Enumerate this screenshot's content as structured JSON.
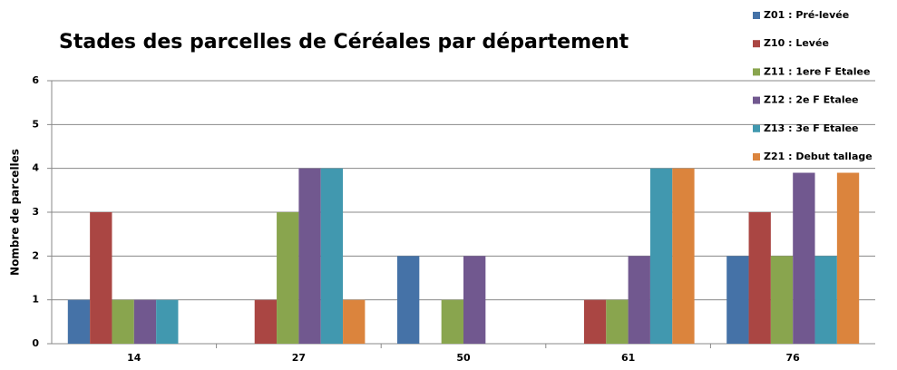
{
  "chart_data": {
    "type": "bar",
    "title": "Stades des parcelles de Céréales par département",
    "y_label": "Nombre de parcelles",
    "categories": [
      "14",
      "27",
      "50",
      "61",
      "76"
    ],
    "series": [
      {
        "name": "Z01 : Pré-levée",
        "color": "#4572a7",
        "values": [
          1,
          0,
          2,
          0,
          2
        ]
      },
      {
        "name": "Z10 : Levée",
        "color": "#aa4643",
        "values": [
          3,
          1,
          0,
          1,
          3
        ]
      },
      {
        "name": "Z11 : 1ere F Etalee",
        "color": "#89a54e",
        "values": [
          1,
          3,
          1,
          1,
          2
        ]
      },
      {
        "name": "Z12 : 2e F Etalee",
        "color": "#71588f",
        "values": [
          1,
          4,
          2,
          2,
          3.9
        ]
      },
      {
        "name": "Z13 : 3e F Etalee",
        "color": "#4198af",
        "values": [
          1,
          4,
          0,
          4,
          2
        ]
      },
      {
        "name": "Z21 : Debut tallage",
        "color": "#db843d",
        "values": [
          0,
          1,
          0,
          4,
          3.9
        ]
      }
    ],
    "ylim": [
      0,
      6
    ],
    "yticks": [
      0,
      1,
      2,
      3,
      4,
      5,
      6
    ],
    "grid": true,
    "legend": "right"
  }
}
